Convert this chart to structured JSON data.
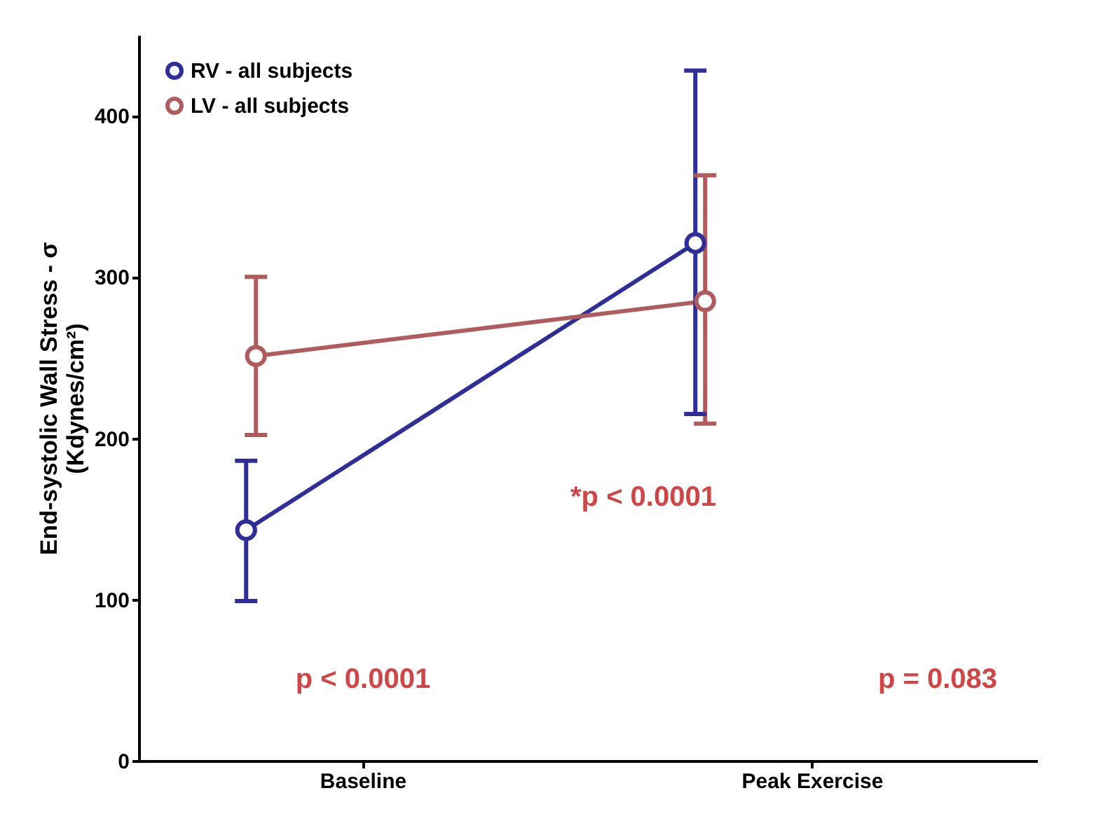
{
  "chart_data": {
    "type": "line",
    "ylabel": "End-systolic Wall Stress - σ\n(Kdynes/cm²)",
    "categories": [
      "Baseline",
      "Peak Exercise"
    ],
    "series": [
      {
        "name": "RV - all subjects",
        "color": "#2e2e9a",
        "values": [
          143,
          321
        ],
        "errors": [
          [
            99,
            186
          ],
          [
            215,
            428
          ]
        ]
      },
      {
        "name": "LV - all subjects",
        "color": "#b05c5c",
        "values": [
          251,
          285
        ],
        "errors": [
          [
            202,
            300
          ],
          [
            209,
            363
          ]
        ]
      }
    ],
    "ylim": [
      0,
      450
    ],
    "yticks": [
      0,
      100,
      200,
      300,
      400
    ],
    "annotations": [
      "*p < 0.0001",
      "p < 0.0001",
      "p = 0.083"
    ],
    "marker": "circle",
    "line_style": "solid",
    "grid": false,
    "legend": "top left"
  }
}
